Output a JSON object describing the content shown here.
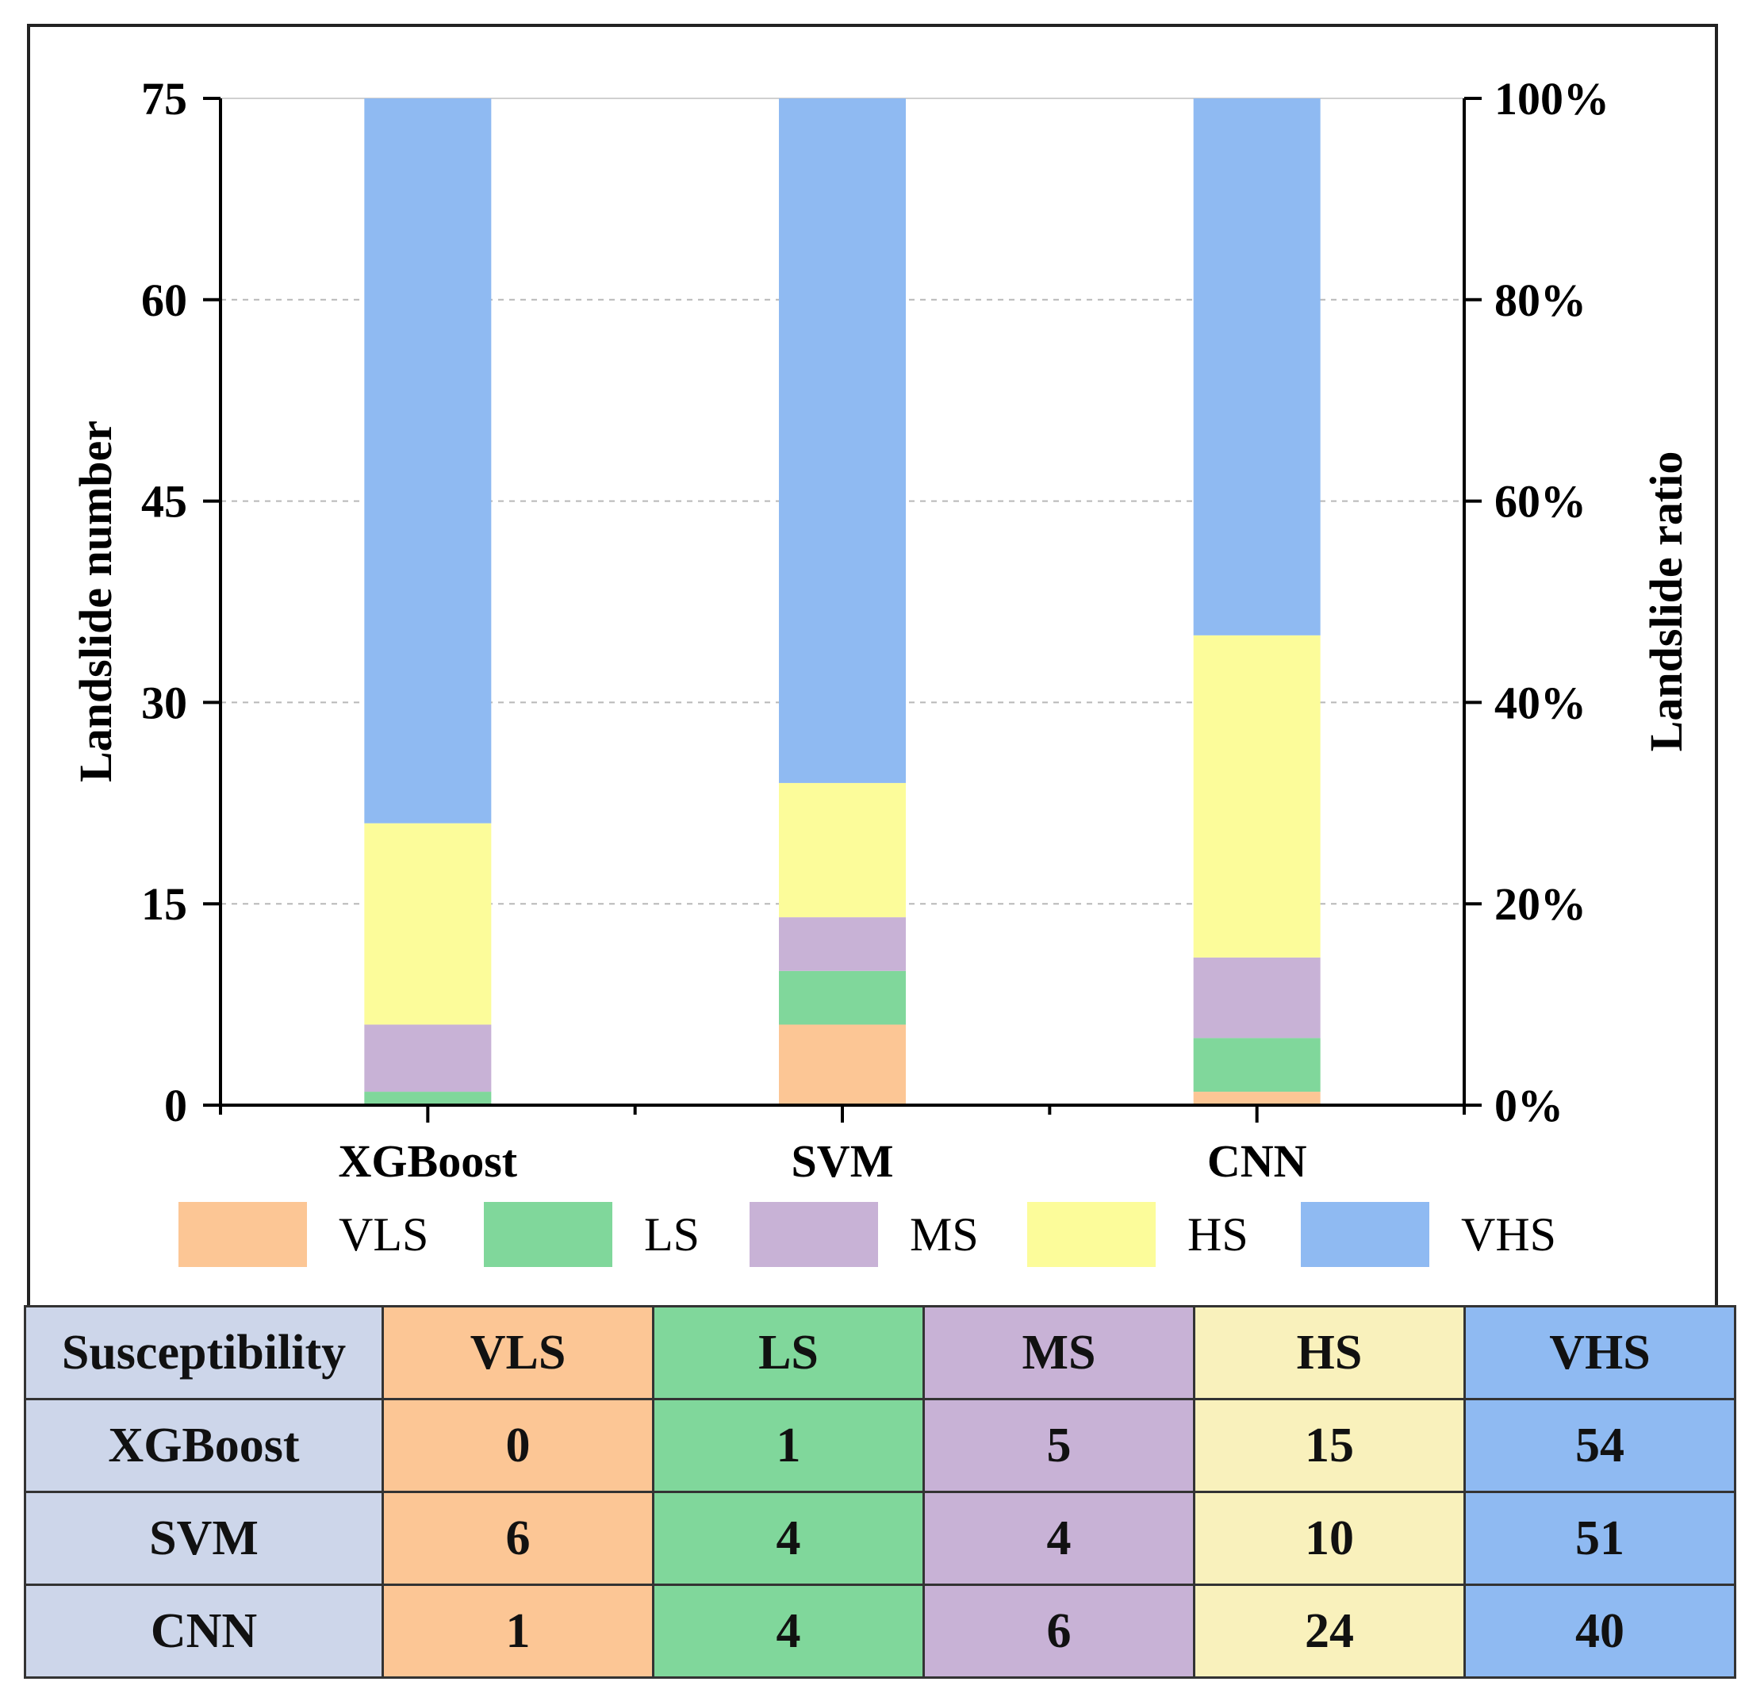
{
  "chart_data": {
    "type": "bar",
    "stacked": true,
    "categories": [
      "XGBoost",
      "SVM",
      "CNN"
    ],
    "series": [
      {
        "name": "VLS",
        "color": "#fcc695",
        "values": [
          0,
          6,
          1
        ]
      },
      {
        "name": "LS",
        "color": "#80d79b",
        "values": [
          1,
          4,
          4
        ]
      },
      {
        "name": "MS",
        "color": "#c8b2d6",
        "values": [
          5,
          4,
          6
        ]
      },
      {
        "name": "HS",
        "color": "#fcfc9a",
        "values": [
          15,
          10,
          24
        ]
      },
      {
        "name": "VHS",
        "color": "#8fbaf2",
        "values": [
          54,
          51,
          40
        ]
      }
    ],
    "ylabel": "Landslide number",
    "ylabel_right": "Landslide ratio",
    "ylim": [
      0,
      75
    ],
    "yticks": [
      "0",
      "15",
      "30",
      "45",
      "60",
      "75"
    ],
    "yticks_right": [
      "0%",
      "20%",
      "40%",
      "60%",
      "80%",
      "100%"
    ],
    "grid": "dashed horizontal",
    "legend_position": "bottom"
  },
  "table": {
    "header_label": "Susceptibility",
    "columns": [
      {
        "label": "VLS",
        "color": "#fcc695"
      },
      {
        "label": "LS",
        "color": "#80d79b"
      },
      {
        "label": "MS",
        "color": "#c8b2d6"
      },
      {
        "label": "HS",
        "color": "#f9f1bc"
      },
      {
        "label": "VHS",
        "color": "#8fbaf2"
      }
    ],
    "rows": [
      {
        "model": "XGBoost",
        "values": [
          "0",
          "1",
          "5",
          "15",
          "54"
        ]
      },
      {
        "model": "SVM",
        "values": [
          "6",
          "4",
          "4",
          "10",
          "51"
        ]
      },
      {
        "model": "CNN",
        "values": [
          "1",
          "4",
          "6",
          "24",
          "40"
        ]
      }
    ]
  }
}
